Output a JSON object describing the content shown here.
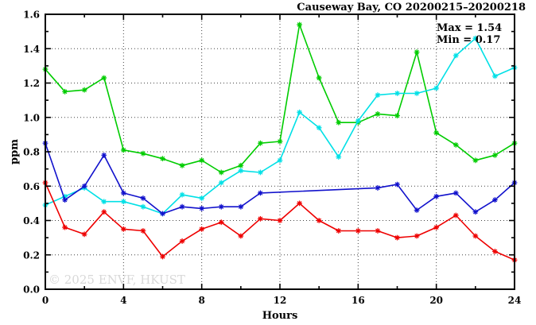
{
  "chart_data": {
    "type": "line",
    "title": "Causeway Bay, CO 20200215–20200218",
    "annotations": [
      {
        "id": "max",
        "text": "Max = 1.54"
      },
      {
        "id": "min",
        "text": "Min = 0.17"
      }
    ],
    "watermark": "© 2025 ENVF, HKUST",
    "xlabel": "Hours",
    "ylabel": "ppm",
    "xlim": [
      0,
      24
    ],
    "ylim": [
      0.0,
      1.6
    ],
    "x_major_ticks": [
      0,
      4,
      8,
      12,
      16,
      20,
      24
    ],
    "x_tick_labels": [
      "0",
      "4",
      "8",
      "12",
      "16",
      "20",
      "24"
    ],
    "x_minor_step": 2,
    "y_major_ticks": [
      0.0,
      0.2,
      0.4,
      0.6,
      0.8,
      1.0,
      1.2,
      1.4,
      1.6
    ],
    "y_tick_labels": [
      "0.0",
      "0.2",
      "0.4",
      "0.6",
      "0.8",
      "1.0",
      "1.2",
      "1.4",
      "1.6"
    ],
    "y_minor_step": 0.1,
    "grid": {
      "style": "dotted",
      "at_major_ticks": true,
      "color": "#444444"
    },
    "legend": "none",
    "marker": "asterisk",
    "x": [
      0,
      1,
      2,
      3,
      4,
      5,
      6,
      7,
      8,
      9,
      10,
      11,
      12,
      13,
      14,
      15,
      16,
      17,
      18,
      19,
      20,
      21,
      22,
      23,
      24
    ],
    "series": [
      {
        "name": "green-day",
        "color": "#00cc00",
        "values": [
          1.28,
          1.15,
          1.16,
          1.23,
          0.81,
          0.79,
          0.76,
          0.72,
          0.75,
          0.68,
          0.72,
          0.85,
          0.86,
          1.54,
          1.23,
          0.97,
          0.97,
          1.02,
          1.01,
          1.38,
          0.91,
          0.84,
          0.75,
          0.78,
          0.85
        ]
      },
      {
        "name": "cyan-day",
        "color": "#00e0e6",
        "values": [
          0.49,
          0.54,
          0.59,
          0.51,
          0.51,
          0.48,
          0.44,
          0.55,
          0.53,
          0.62,
          0.69,
          0.68,
          0.75,
          1.03,
          0.94,
          0.77,
          0.98,
          1.13,
          1.14,
          1.14,
          1.17,
          1.36,
          1.46,
          1.24,
          1.29
        ]
      },
      {
        "name": "blue-day",
        "color": "#1111cc",
        "values": [
          0.85,
          0.52,
          0.6,
          0.78,
          0.56,
          0.53,
          0.44,
          0.48,
          0.47,
          0.48,
          0.48,
          0.56,
          null,
          null,
          null,
          null,
          null,
          0.59,
          0.61,
          0.46,
          0.54,
          0.56,
          0.45,
          0.52,
          0.62
        ]
      },
      {
        "name": "red-day",
        "color": "#ee0000",
        "values": [
          0.62,
          0.36,
          0.32,
          0.45,
          0.35,
          0.34,
          0.19,
          0.28,
          0.35,
          0.39,
          0.31,
          0.41,
          0.4,
          0.5,
          0.4,
          0.34,
          0.34,
          0.34,
          0.3,
          0.31,
          0.36,
          0.43,
          0.31,
          0.22,
          0.17
        ]
      }
    ],
    "colors": {
      "axis": "#000000",
      "grid": "#444444",
      "background": "#ffffff",
      "watermark": "#d8d8d8"
    }
  }
}
